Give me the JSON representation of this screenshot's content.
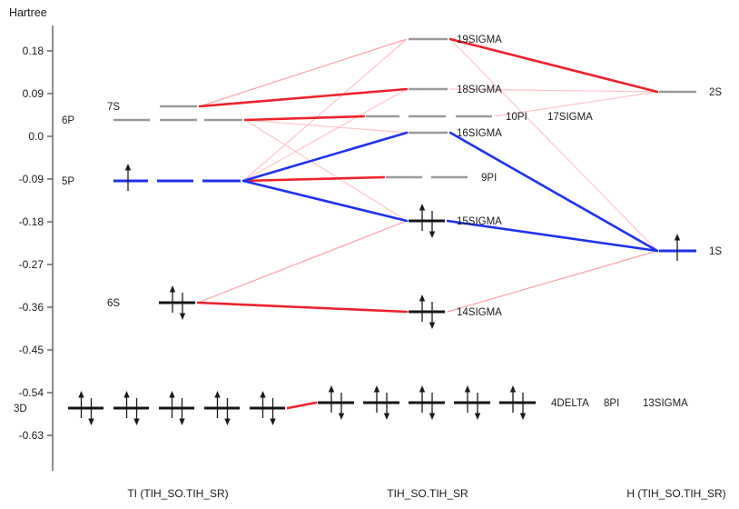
{
  "figure": {
    "axis_unit_label": "Hartree",
    "y_ticks": [
      "0.18",
      "0.09",
      "0.0",
      "-0.09",
      "-0.18",
      "-0.27",
      "-0.36",
      "-0.45",
      "-0.54",
      "-0.63"
    ]
  },
  "chart_data": {
    "type": "energy-level-correlation-diagram",
    "title": "",
    "ylabel": "Hartree",
    "ylim": [
      -0.68,
      0.23
    ],
    "grid": false,
    "columns": [
      {
        "id": "ti",
        "label": "TI (TIH_SO.TIH_SR)"
      },
      {
        "id": "tih",
        "label": "TIH_SO.TIH_SR"
      },
      {
        "id": "h",
        "label": "H (TIH_SO.TIH_SR)"
      }
    ],
    "levels": [
      {
        "id": "7S",
        "column": "ti",
        "label": "7S",
        "energy_hartree": 0.063,
        "occupation": "virtual",
        "electrons": "none"
      },
      {
        "id": "6P",
        "column": "ti",
        "label": "6P",
        "energy_hartree": 0.034,
        "occupation": "virtual",
        "electrons": "none"
      },
      {
        "id": "5P",
        "column": "ti",
        "label": "5P",
        "energy_hartree": -0.094,
        "occupation": "singly-occupied",
        "electrons": "up"
      },
      {
        "id": "6S",
        "column": "ti",
        "label": "6S",
        "energy_hartree": -0.351,
        "occupation": "doubly-occupied",
        "electrons": "up-down"
      },
      {
        "id": "3D",
        "column": "ti",
        "label": "3D",
        "energy_hartree": -0.573,
        "occupation": "doubly-occupied",
        "electrons": "up-down-each-of-5"
      },
      {
        "id": "19SIGMA",
        "column": "tih",
        "label": "19SIGMA",
        "energy_hartree": 0.205,
        "occupation": "virtual",
        "electrons": "none"
      },
      {
        "id": "18SIGMA",
        "column": "tih",
        "label": "18SIGMA",
        "energy_hartree": 0.1,
        "occupation": "virtual",
        "electrons": "none"
      },
      {
        "id": "10PI",
        "column": "tih",
        "label": "10PI",
        "energy_hartree": 0.042,
        "occupation": "virtual",
        "electrons": "none"
      },
      {
        "id": "17SIGMA",
        "column": "tih",
        "label": "17SIGMA",
        "energy_hartree": 0.042,
        "occupation": "virtual",
        "electrons": "none"
      },
      {
        "id": "16SIGMA",
        "column": "tih",
        "label": "16SIGMA",
        "energy_hartree": 0.008,
        "occupation": "virtual",
        "electrons": "none"
      },
      {
        "id": "9PI",
        "column": "tih",
        "label": "9PI",
        "energy_hartree": -0.086,
        "occupation": "virtual",
        "electrons": "none"
      },
      {
        "id": "15SIGMA",
        "column": "tih",
        "label": "15SIGMA",
        "energy_hartree": -0.178,
        "occupation": "doubly-occupied",
        "electrons": "up-down"
      },
      {
        "id": "14SIGMA",
        "column": "tih",
        "label": "14SIGMA",
        "energy_hartree": -0.37,
        "occupation": "doubly-occupied",
        "electrons": "up-down"
      },
      {
        "id": "4DELTA",
        "column": "tih",
        "label": "4DELTA",
        "energy_hartree": -0.561,
        "occupation": "doubly-occupied",
        "electrons": "up-down-each-of-2"
      },
      {
        "id": "8PI",
        "column": "tih",
        "label": "8PI",
        "energy_hartree": -0.561,
        "occupation": "doubly-occupied",
        "electrons": "up-down-each-of-2"
      },
      {
        "id": "13SIGMA",
        "column": "tih",
        "label": "13SIGMA",
        "energy_hartree": -0.561,
        "occupation": "doubly-occupied",
        "electrons": "up-down"
      },
      {
        "id": "2S",
        "column": "h",
        "label": "2S",
        "energy_hartree": 0.094,
        "occupation": "virtual",
        "electrons": "none"
      },
      {
        "id": "1S",
        "column": "h",
        "label": "1S",
        "energy_hartree": -0.241,
        "occupation": "singly-occupied",
        "electrons": "up"
      }
    ],
    "connections": [
      {
        "from": "7S",
        "to": "19SIGMA",
        "strength": "weak",
        "color": "pink"
      },
      {
        "from": "5P",
        "to": "19SIGMA",
        "strength": "weak",
        "color": "lightpink"
      },
      {
        "from": "5P",
        "to": "18SIGMA",
        "strength": "weak",
        "color": "lightpink"
      },
      {
        "from": "6P",
        "to": "16SIGMA",
        "strength": "weak",
        "color": "lightpink"
      },
      {
        "from": "6P",
        "to": "15SIGMA",
        "strength": "weak",
        "color": "lightpink"
      },
      {
        "from": "6S",
        "to": "15SIGMA",
        "strength": "weak",
        "color": "pink"
      },
      {
        "from": "18SIGMA",
        "to": "2S",
        "strength": "weak",
        "color": "lightpink"
      },
      {
        "from": "17SIGMA",
        "to": "2S",
        "strength": "weak",
        "color": "lightpink"
      },
      {
        "from": "19SIGMA",
        "to": "1S",
        "strength": "weak",
        "color": "lightpink"
      },
      {
        "from": "14SIGMA",
        "to": "1S",
        "strength": "weak",
        "color": "pink"
      },
      {
        "from": "7S",
        "to": "18SIGMA",
        "strength": "strong",
        "color": "red"
      },
      {
        "from": "6P",
        "to": "10PI",
        "strength": "strong",
        "color": "red"
      },
      {
        "from": "5P",
        "to": "9PI",
        "strength": "strong",
        "color": "red"
      },
      {
        "from": "6S",
        "to": "14SIGMA",
        "strength": "strong",
        "color": "red"
      },
      {
        "from": "3D",
        "to": "4DELTA",
        "strength": "strong",
        "color": "red"
      },
      {
        "from": "19SIGMA",
        "to": "2S",
        "strength": "strong",
        "color": "red"
      },
      {
        "from": "5P",
        "to": "16SIGMA",
        "strength": "strong",
        "color": "blue"
      },
      {
        "from": "5P",
        "to": "15SIGMA",
        "strength": "strong",
        "color": "blue"
      },
      {
        "from": "16SIGMA",
        "to": "1S",
        "strength": "strong",
        "color": "blue"
      },
      {
        "from": "15SIGMA",
        "to": "1S",
        "strength": "strong",
        "color": "blue"
      }
    ],
    "colors": {
      "strong_red": "#ee2129",
      "strong_blue": "#1d32ef",
      "weak_pink": "#ff9fa6",
      "weak_lightpink": "#ffc4c9",
      "level_virtual_gray": "#999999",
      "level_occupied_black": "#151515",
      "level_singly_blue": "#1d32ef"
    }
  }
}
